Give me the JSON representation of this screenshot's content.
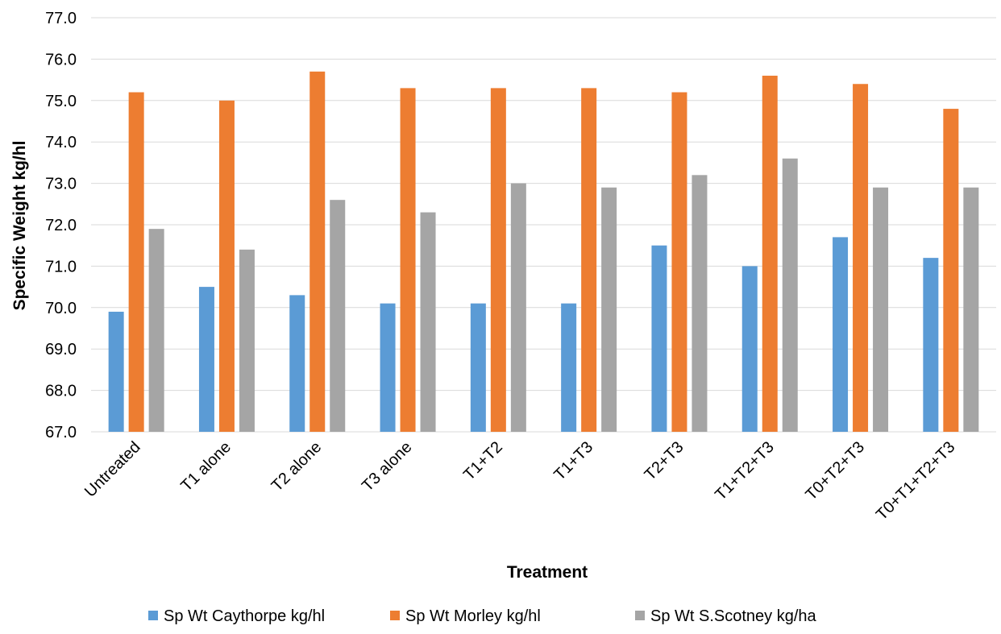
{
  "chart_data": {
    "type": "bar",
    "title": "",
    "xlabel": "Treatment",
    "ylabel": "Specific Weight kg/hl",
    "ylim": [
      67.0,
      77.0
    ],
    "ytick_step": 1.0,
    "grid": true,
    "legend_position": "bottom",
    "categories": [
      "Untreated",
      "T1 alone",
      "T2 alone",
      "T3 alone",
      "T1+T2",
      "T1+T3",
      "T2+T3",
      "T1+T2+T3",
      "T0+T2+T3",
      "T0+T1+T2+T3"
    ],
    "series": [
      {
        "name": "Sp Wt Caythorpe kg/hl",
        "color": "#5b9bd5",
        "values": [
          69.9,
          70.5,
          70.3,
          70.1,
          70.1,
          70.1,
          71.5,
          71.0,
          71.7,
          71.2
        ]
      },
      {
        "name": "Sp Wt Morley kg/hl",
        "color": "#ed7d31",
        "values": [
          75.2,
          75.0,
          75.7,
          75.3,
          75.3,
          75.3,
          75.2,
          75.6,
          75.4,
          74.8
        ]
      },
      {
        "name": "Sp Wt S.Scotney kg/ha",
        "color": "#a5a5a5",
        "values": [
          71.9,
          71.4,
          72.6,
          72.3,
          73.0,
          72.9,
          73.2,
          73.6,
          72.9,
          72.9
        ]
      }
    ]
  }
}
